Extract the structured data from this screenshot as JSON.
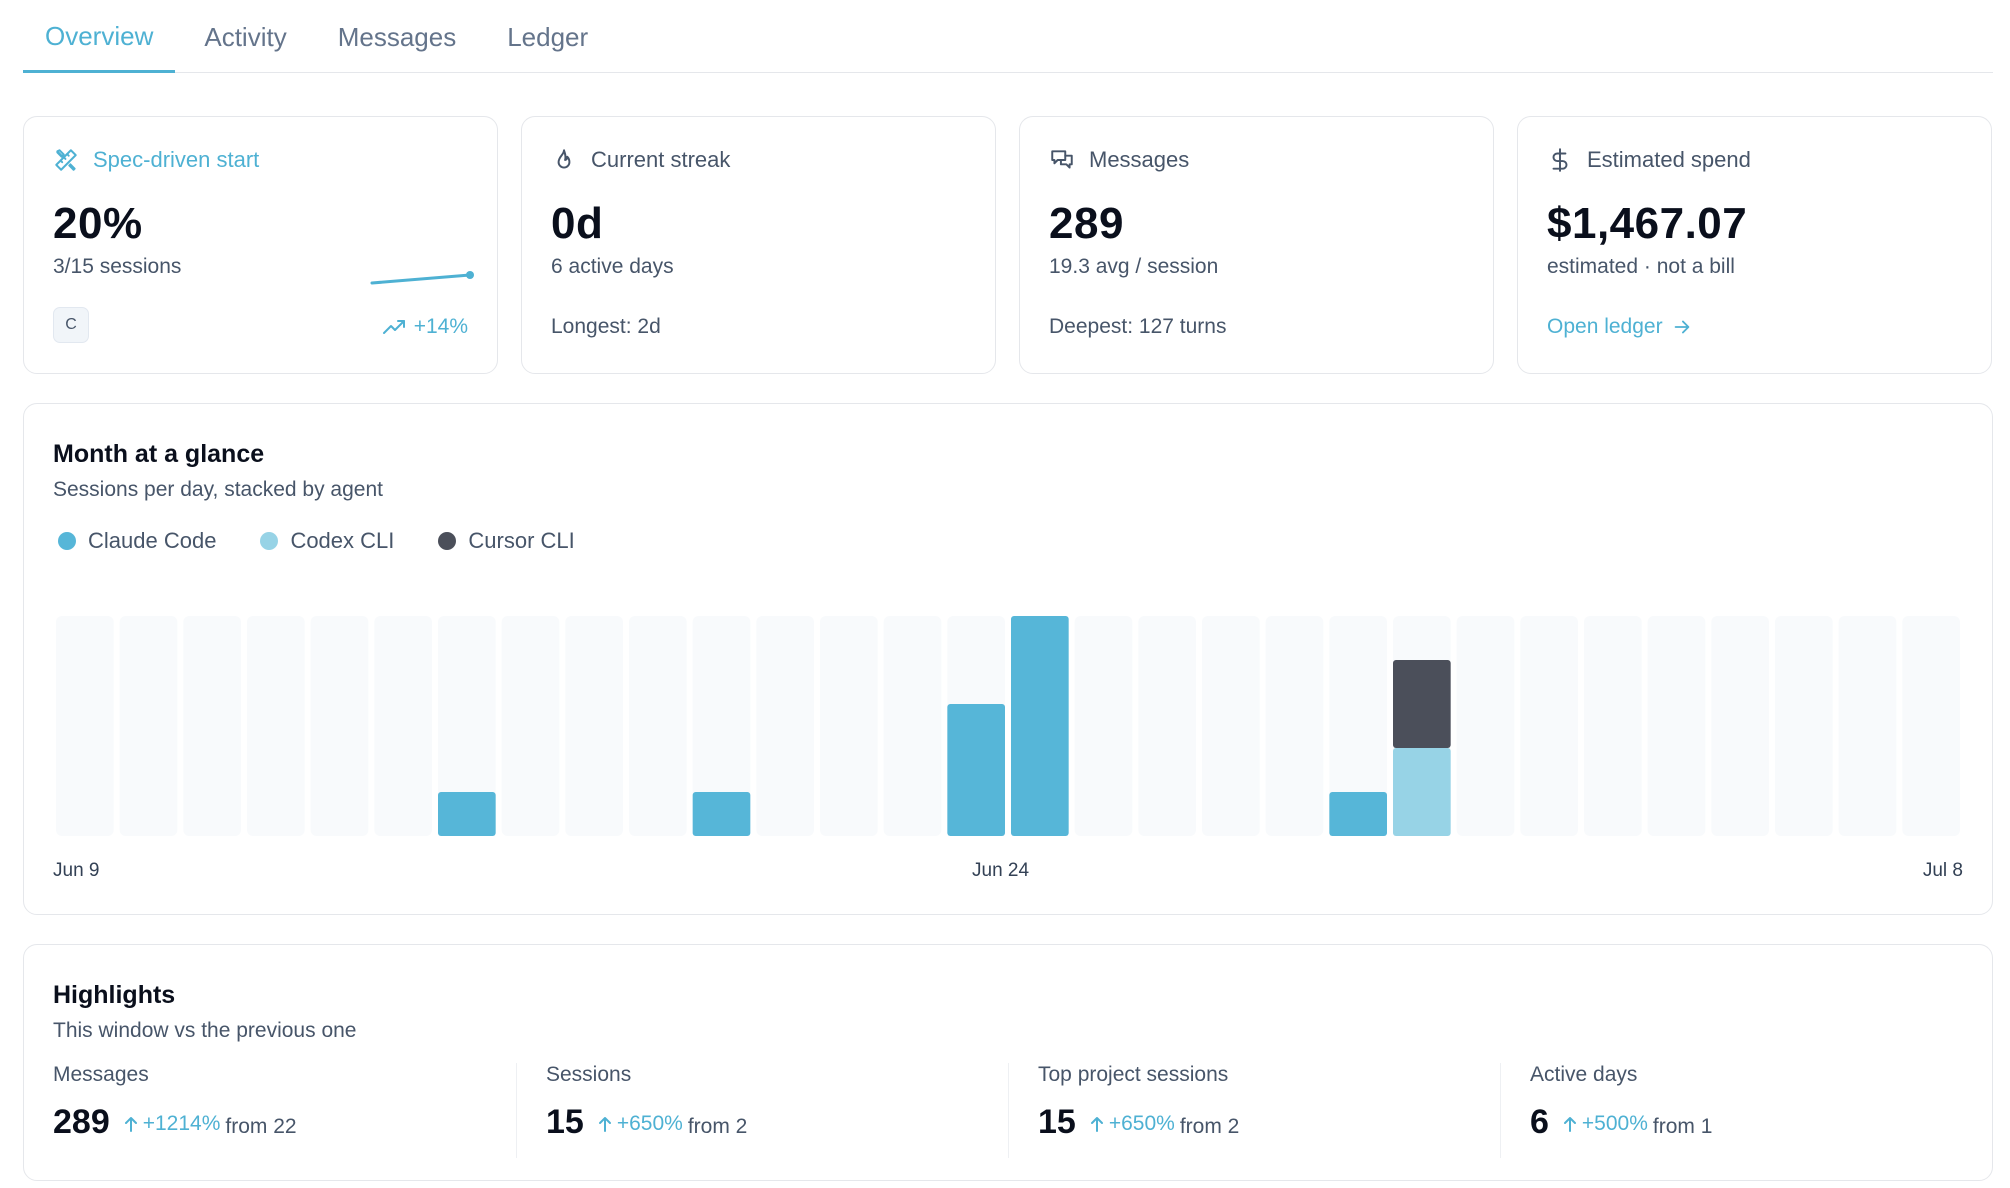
{
  "tabs": [
    {
      "label": "Overview",
      "active": true
    },
    {
      "label": "Activity",
      "active": false
    },
    {
      "label": "Messages",
      "active": false
    },
    {
      "label": "Ledger",
      "active": false
    }
  ],
  "stats": {
    "spec": {
      "title": "Spec-driven start",
      "value": "20%",
      "sub": "3/15 sessions",
      "chip": "C",
      "trend": "+14%",
      "icon": "ruler-pencil-icon"
    },
    "streak": {
      "title": "Current streak",
      "value": "0d",
      "sub": "6 active days",
      "foot": "Longest: 2d",
      "icon": "flame-icon"
    },
    "messages": {
      "title": "Messages",
      "value": "289",
      "sub": "19.3 avg / session",
      "foot": "Deepest: 127 turns",
      "icon": "chat-bubbles-icon"
    },
    "spend": {
      "title": "Estimated spend",
      "value": "$1,467.07",
      "sub": "estimated · not a bill",
      "link": "Open ledger",
      "icon": "dollar-icon"
    }
  },
  "month": {
    "title": "Month at a glance",
    "subtitle": "Sessions per day, stacked by agent",
    "x_labels": {
      "start": "Jun 9",
      "mid": "Jun 24",
      "end": "Jul 8"
    }
  },
  "chart_data": {
    "type": "bar",
    "stacked": true,
    "title": "Month at a glance",
    "subtitle": "Sessions per day, stacked by agent",
    "x_tick_labels": [
      "Jun 9",
      "Jun 24",
      "Jul 8"
    ],
    "categories": [
      "Jun 9",
      "Jun 10",
      "Jun 11",
      "Jun 12",
      "Jun 13",
      "Jun 14",
      "Jun 15",
      "Jun 16",
      "Jun 17",
      "Jun 18",
      "Jun 19",
      "Jun 20",
      "Jun 21",
      "Jun 22",
      "Jun 23",
      "Jun 24",
      "Jun 25",
      "Jun 26",
      "Jun 27",
      "Jun 28",
      "Jun 29",
      "Jun 30",
      "Jul 1",
      "Jul 2",
      "Jul 3",
      "Jul 4",
      "Jul 5",
      "Jul 6",
      "Jul 7",
      "Jul 8"
    ],
    "series": [
      {
        "name": "Claude Code",
        "color": "#56b6d8",
        "values": [
          0,
          0,
          0,
          0,
          0,
          0,
          1,
          0,
          0,
          0,
          1,
          0,
          0,
          0,
          3,
          5,
          0,
          0,
          0,
          0,
          1,
          0,
          0,
          0,
          0,
          0,
          0,
          0,
          0,
          0
        ]
      },
      {
        "name": "Codex CLI",
        "color": "#97d3e6",
        "values": [
          0,
          0,
          0,
          0,
          0,
          0,
          0,
          0,
          0,
          0,
          0,
          0,
          0,
          0,
          0,
          0,
          0,
          0,
          0,
          0,
          0,
          2,
          0,
          0,
          0,
          0,
          0,
          0,
          0,
          0
        ]
      },
      {
        "name": "Cursor CLI",
        "color": "#4b4f5a",
        "values": [
          0,
          0,
          0,
          0,
          0,
          0,
          0,
          0,
          0,
          0,
          0,
          0,
          0,
          0,
          0,
          0,
          0,
          0,
          0,
          0,
          0,
          2,
          0,
          0,
          0,
          0,
          0,
          0,
          0,
          0
        ]
      }
    ],
    "ylim": [
      0,
      5
    ],
    "legend": "top-left",
    "grid": false
  },
  "highlights": {
    "title": "Highlights",
    "subtitle": "This window vs the previous one",
    "items": [
      {
        "label": "Messages",
        "value": "289",
        "change": "+1214%",
        "from": "from 22"
      },
      {
        "label": "Sessions",
        "value": "15",
        "change": "+650%",
        "from": "from 2"
      },
      {
        "label": "Top project sessions",
        "value": "15",
        "change": "+650%",
        "from": "from 2"
      },
      {
        "label": "Active days",
        "value": "6",
        "change": "+500%",
        "from": "from 1"
      }
    ]
  },
  "colors": {
    "accent": "#4eb1d3",
    "claude": "#56b6d8",
    "codex": "#97d3e6",
    "cursor": "#4b4f5a",
    "track": "#f8fafc"
  }
}
